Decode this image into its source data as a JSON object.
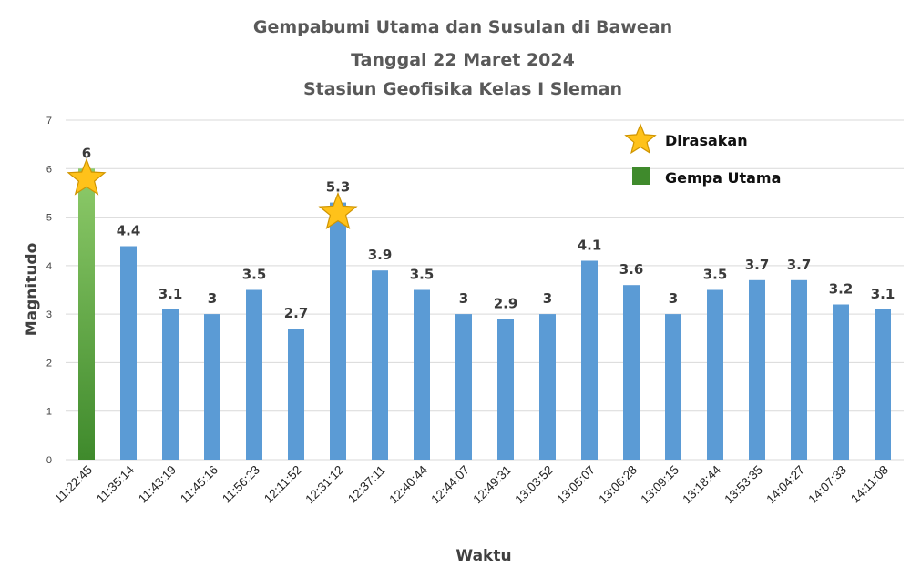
{
  "colors": {
    "bar": "#5b9bd5",
    "main_bar_top": "#8ecb6a",
    "main_bar_bottom": "#3f8a2c",
    "star_fill": "#ffc21a",
    "star_stroke": "#d09500",
    "grid": "#d9d9d9"
  },
  "legend": [
    {
      "label": "Dirasakan",
      "icon": "star-icon"
    },
    {
      "label": "Gempa Utama",
      "icon": "green-square-icon"
    }
  ],
  "chart_data": {
    "type": "bar",
    "title": [
      "Gempabumi Utama dan Susulan di Bawean",
      "Tanggal 22 Maret 2024",
      "Stasiun Geofisika Kelas I Sleman"
    ],
    "xlabel": "Waktu",
    "ylabel": "Magnitudo",
    "ylim": [
      0,
      7
    ],
    "yticks": [
      0,
      1,
      2,
      3,
      4,
      5,
      6,
      7
    ],
    "grid": true,
    "legend_position": "top-right",
    "categories": [
      "11:22:45",
      "11:35:14",
      "11:43:19",
      "11:45:16",
      "11:56:23",
      "12:11:52",
      "12:31:12",
      "12:37:11",
      "12:40:44",
      "12:44:07",
      "12:49:31",
      "13:03:52",
      "13:05:07",
      "13:06:28",
      "13:09:15",
      "13:18:44",
      "13:53:35",
      "14:04:27",
      "14:07:33",
      "14:11:08"
    ],
    "values": [
      6,
      4.4,
      3.1,
      3,
      3.5,
      2.7,
      5.3,
      3.9,
      3.5,
      3,
      2.9,
      3,
      4.1,
      3.6,
      3,
      3.5,
      3.7,
      3.7,
      3.2,
      3.1
    ],
    "data_labels": [
      "6",
      "4.4",
      "3.1",
      "3",
      "3.5",
      "2.7",
      "5.3",
      "3.9",
      "3.5",
      "3",
      "2.9",
      "3",
      "4.1",
      "3.6",
      "3",
      "3.5",
      "3.7",
      "3.7",
      "3.2",
      "3.1"
    ],
    "main_shock": [
      "11:22:45"
    ],
    "felt": [
      "11:22:45",
      "12:31:12"
    ]
  }
}
